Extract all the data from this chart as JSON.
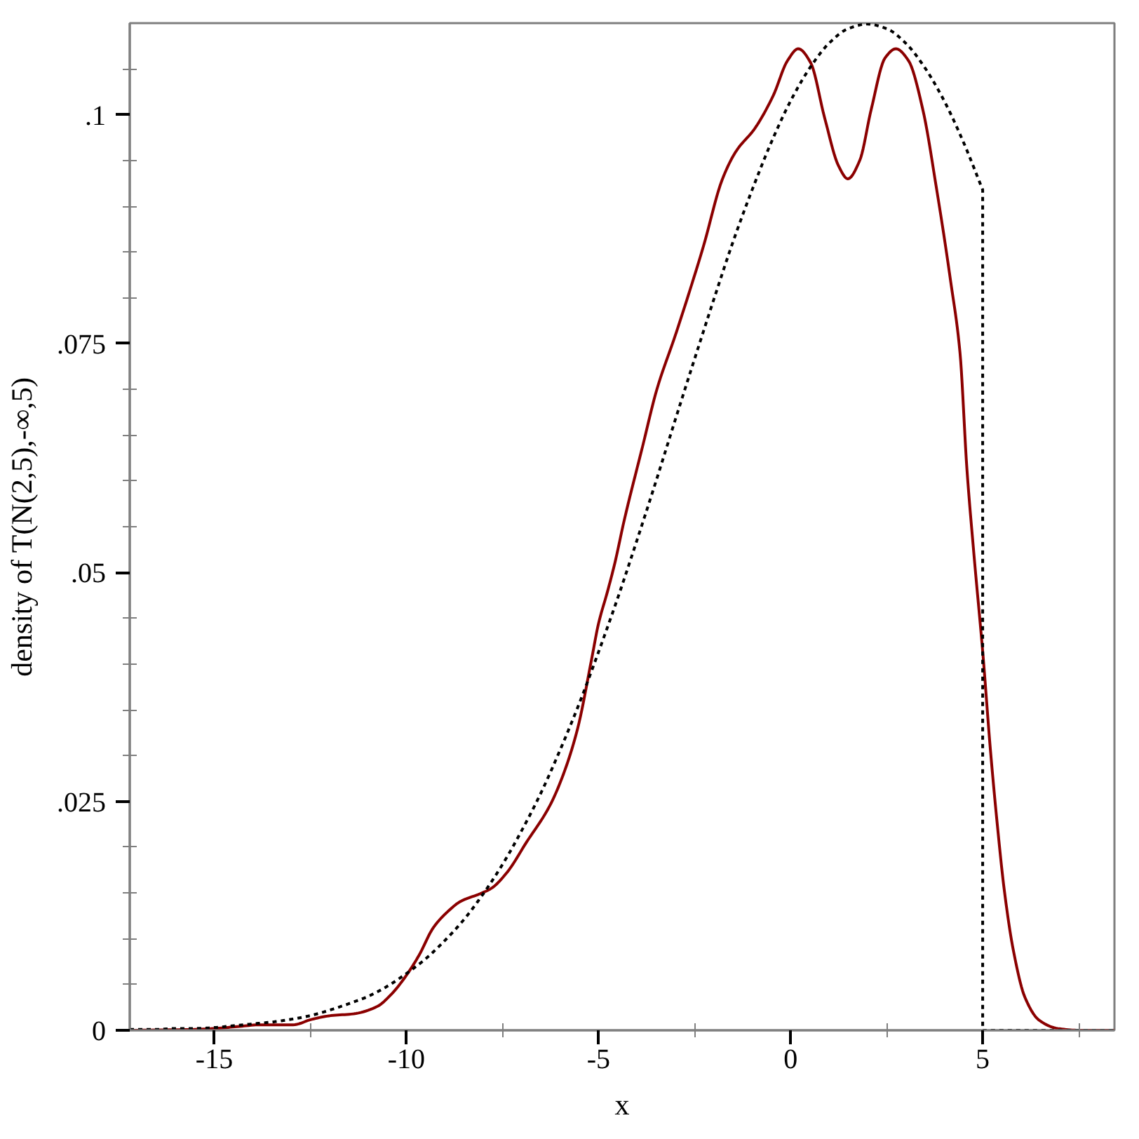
{
  "chart_data": {
    "type": "line",
    "xlabel": "x",
    "ylabel": "density of T(N(2,5),-∞,5)",
    "xlim": [
      -17.2,
      8.43
    ],
    "ylim": [
      0,
      0.11
    ],
    "xticks": [
      -15,
      {
        "value": -12.5,
        "label": null
      },
      -10,
      {
        "value": -7.5,
        "label": null
      },
      -5,
      {
        "value": -2.5,
        "label": null
      },
      0,
      {
        "value": 2.5,
        "label": null
      },
      5,
      {
        "value": 7.5,
        "label": null
      }
    ],
    "yticks": [
      0,
      {
        "value": 0.005,
        "label": null
      },
      {
        "value": 0.01,
        "label": null
      },
      {
        "value": 0.015,
        "label": null
      },
      {
        "value": 0.02,
        "label": null
      },
      {
        "value": 0.025,
        "label": ".025"
      },
      {
        "value": 0.03,
        "label": null
      },
      {
        "value": 0.035,
        "label": null
      },
      {
        "value": 0.04,
        "label": null
      },
      {
        "value": 0.045,
        "label": null
      },
      {
        "value": 0.05,
        "label": ".05"
      },
      {
        "value": 0.055,
        "label": null
      },
      {
        "value": 0.06,
        "label": null
      },
      {
        "value": 0.065,
        "label": null
      },
      {
        "value": 0.07,
        "label": null
      },
      {
        "value": 0.075,
        "label": ".075"
      },
      {
        "value": 0.08,
        "label": null
      },
      {
        "value": 0.085,
        "label": null
      },
      {
        "value": 0.09,
        "label": null
      },
      {
        "value": 0.095,
        "label": null
      },
      {
        "value": 0.1,
        "label": ".1"
      },
      {
        "value": 0.105,
        "label": null
      }
    ],
    "grid": false,
    "series": [
      {
        "color": "#8b0000",
        "line_style": "solid",
        "x": [
          -17.2,
          -15.5,
          -15.0,
          -14.4,
          -13.8,
          -12.95,
          -12.46,
          -11.97,
          -11.37,
          -10.76,
          -10.4,
          -10.0,
          -9.67,
          -9.3,
          -8.94,
          -8.58,
          -8.09,
          -7.79,
          -7.37,
          -6.88,
          -6.27,
          -5.91,
          -5.54,
          -5.18,
          -5.0,
          -4.76,
          -4.57,
          -4.33,
          -3.85,
          -3.48,
          -3.0,
          -2.63,
          -2.27,
          -1.78,
          -1.42,
          -0.93,
          -0.45,
          -0.08,
          0.2,
          0.52,
          0.89,
          1.25,
          1.49,
          1.8,
          2.1,
          2.46,
          2.74,
          3.07,
          3.44,
          3.8,
          4.17,
          4.41,
          4.59,
          4.77,
          5.01,
          5.2,
          5.38,
          5.56,
          5.8,
          6.1,
          6.47,
          6.95,
          7.5,
          8.43
        ],
        "values": [
          0,
          0.0001,
          0.0002,
          0.0004,
          0.0006,
          0.0006,
          0.0012,
          0.0016,
          0.0018,
          0.0026,
          0.0039,
          0.006,
          0.0082,
          0.0112,
          0.0129,
          0.0141,
          0.0149,
          0.0155,
          0.0173,
          0.0205,
          0.0245,
          0.028,
          0.033,
          0.0405,
          0.0444,
          0.048,
          0.0511,
          0.0557,
          0.0638,
          0.07,
          0.0759,
          0.0807,
          0.0856,
          0.0929,
          0.096,
          0.0985,
          0.1021,
          0.1059,
          0.1072,
          0.1057,
          0.0996,
          0.0944,
          0.093,
          0.095,
          0.1006,
          0.1062,
          0.1072,
          0.1059,
          0.1006,
          0.0919,
          0.0817,
          0.074,
          0.0613,
          0.0521,
          0.0409,
          0.0307,
          0.0225,
          0.0154,
          0.0087,
          0.0036,
          0.0011,
          0.0002,
          0,
          0
        ]
      },
      {
        "color": "#000000",
        "line_style": "dotted",
        "x": [
          -17.2,
          -16.5,
          -16,
          -15.5,
          -15,
          -14.5,
          -14,
          -13.5,
          -13,
          -12.5,
          -12,
          -11.5,
          -11,
          -10.5,
          -10,
          -9.5,
          -9,
          -8.5,
          -8,
          -7.5,
          -7,
          -6.5,
          -6,
          -5.5,
          -5,
          -4.5,
          -4,
          -3.5,
          -3,
          -2.5,
          -2,
          -1.5,
          -1,
          -0.5,
          0,
          0.5,
          1,
          1.5,
          2,
          2.5,
          3,
          3.5,
          4,
          4.5,
          5,
          5,
          8.43
        ],
        "values": [
          0.0001,
          0.0001,
          0.0002,
          0.0002,
          0.0003,
          0.0005,
          0.0007,
          0.0009,
          0.0012,
          0.0016,
          0.0022,
          0.0029,
          0.0037,
          0.0048,
          0.0062,
          0.0078,
          0.0098,
          0.0121,
          0.0149,
          0.0181,
          0.0218,
          0.0259,
          0.0306,
          0.0357,
          0.0413,
          0.0472,
          0.0535,
          0.06,
          0.0667,
          0.0733,
          0.0798,
          0.0861,
          0.0918,
          0.097,
          0.1015,
          0.1051,
          0.1078,
          0.1094,
          0.1099,
          0.1094,
          0.1078,
          0.1051,
          0.1015,
          0.097,
          0.0918,
          0,
          0
        ]
      }
    ]
  }
}
